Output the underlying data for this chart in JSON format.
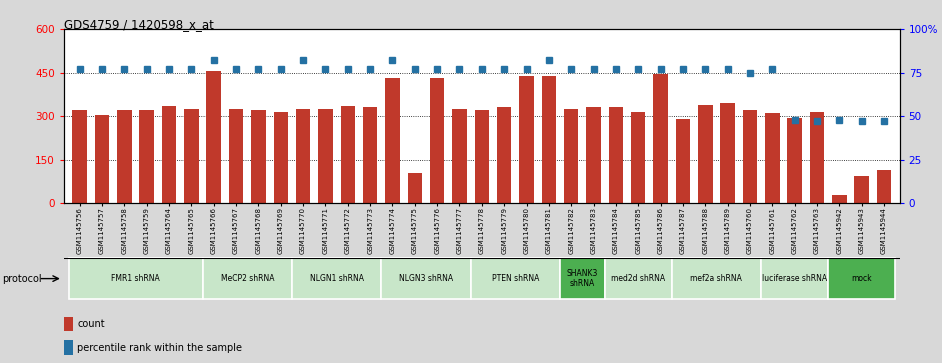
{
  "title": "GDS4759 / 1420598_x_at",
  "samples": [
    "GSM1145756",
    "GSM1145757",
    "GSM1145758",
    "GSM1145759",
    "GSM1145764",
    "GSM1145765",
    "GSM1145766",
    "GSM1145767",
    "GSM1145768",
    "GSM1145769",
    "GSM1145770",
    "GSM1145771",
    "GSM1145772",
    "GSM1145773",
    "GSM1145774",
    "GSM1145775",
    "GSM1145776",
    "GSM1145777",
    "GSM1145778",
    "GSM1145779",
    "GSM1145780",
    "GSM1145781",
    "GSM1145782",
    "GSM1145783",
    "GSM1145784",
    "GSM1145785",
    "GSM1145786",
    "GSM1145787",
    "GSM1145788",
    "GSM1145789",
    "GSM1145760",
    "GSM1145761",
    "GSM1145762",
    "GSM1145763",
    "GSM1145942",
    "GSM1145943",
    "GSM1145944"
  ],
  "bar_values": [
    320,
    305,
    320,
    320,
    335,
    325,
    455,
    325,
    320,
    315,
    325,
    325,
    335,
    330,
    430,
    105,
    430,
    325,
    320,
    330,
    440,
    440,
    325,
    330,
    330,
    315,
    445,
    290,
    340,
    345,
    320,
    310,
    295,
    315,
    28,
    95,
    115
  ],
  "percentile_values": [
    77,
    77,
    77,
    77,
    77,
    77,
    82,
    77,
    77,
    77,
    82,
    77,
    77,
    77,
    82,
    77,
    77,
    77,
    77,
    77,
    77,
    82,
    77,
    77,
    77,
    77,
    77,
    77,
    77,
    77,
    75,
    77,
    48,
    47,
    48,
    47,
    47
  ],
  "protocols": [
    {
      "label": "FMR1 shRNA",
      "start": 0,
      "end": 6,
      "color": "#c8e6c9"
    },
    {
      "label": "MeCP2 shRNA",
      "start": 6,
      "end": 10,
      "color": "#c8e6c9"
    },
    {
      "label": "NLGN1 shRNA",
      "start": 10,
      "end": 14,
      "color": "#c8e6c9"
    },
    {
      "label": "NLGN3 shRNA",
      "start": 14,
      "end": 18,
      "color": "#c8e6c9"
    },
    {
      "label": "PTEN shRNA",
      "start": 18,
      "end": 22,
      "color": "#c8e6c9"
    },
    {
      "label": "SHANK3\nshRNA",
      "start": 22,
      "end": 24,
      "color": "#4caf50"
    },
    {
      "label": "med2d shRNA",
      "start": 24,
      "end": 27,
      "color": "#c8e6c9"
    },
    {
      "label": "mef2a shRNA",
      "start": 27,
      "end": 31,
      "color": "#c8e6c9"
    },
    {
      "label": "luciferase shRNA",
      "start": 31,
      "end": 34,
      "color": "#c8e6c9"
    },
    {
      "label": "mock",
      "start": 34,
      "end": 37,
      "color": "#4caf50"
    }
  ],
  "bar_color": "#c0392b",
  "dot_color": "#2471a3",
  "ylim_left": [
    0,
    600
  ],
  "ylim_right": [
    0,
    100
  ],
  "yticks_left": [
    0,
    150,
    300,
    450,
    600
  ],
  "ytick_labels_left": [
    "0",
    "150",
    "300",
    "450",
    "600"
  ],
  "yticks_right": [
    0,
    25,
    50,
    75,
    100
  ],
  "ytick_labels_right": [
    "0",
    "25",
    "50",
    "75",
    "100%"
  ],
  "hlines": [
    150,
    300,
    450
  ],
  "fig_bg": "#d8d8d8",
  "plot_bg": "#ffffff",
  "xtick_area_bg": "#c8c8c8"
}
